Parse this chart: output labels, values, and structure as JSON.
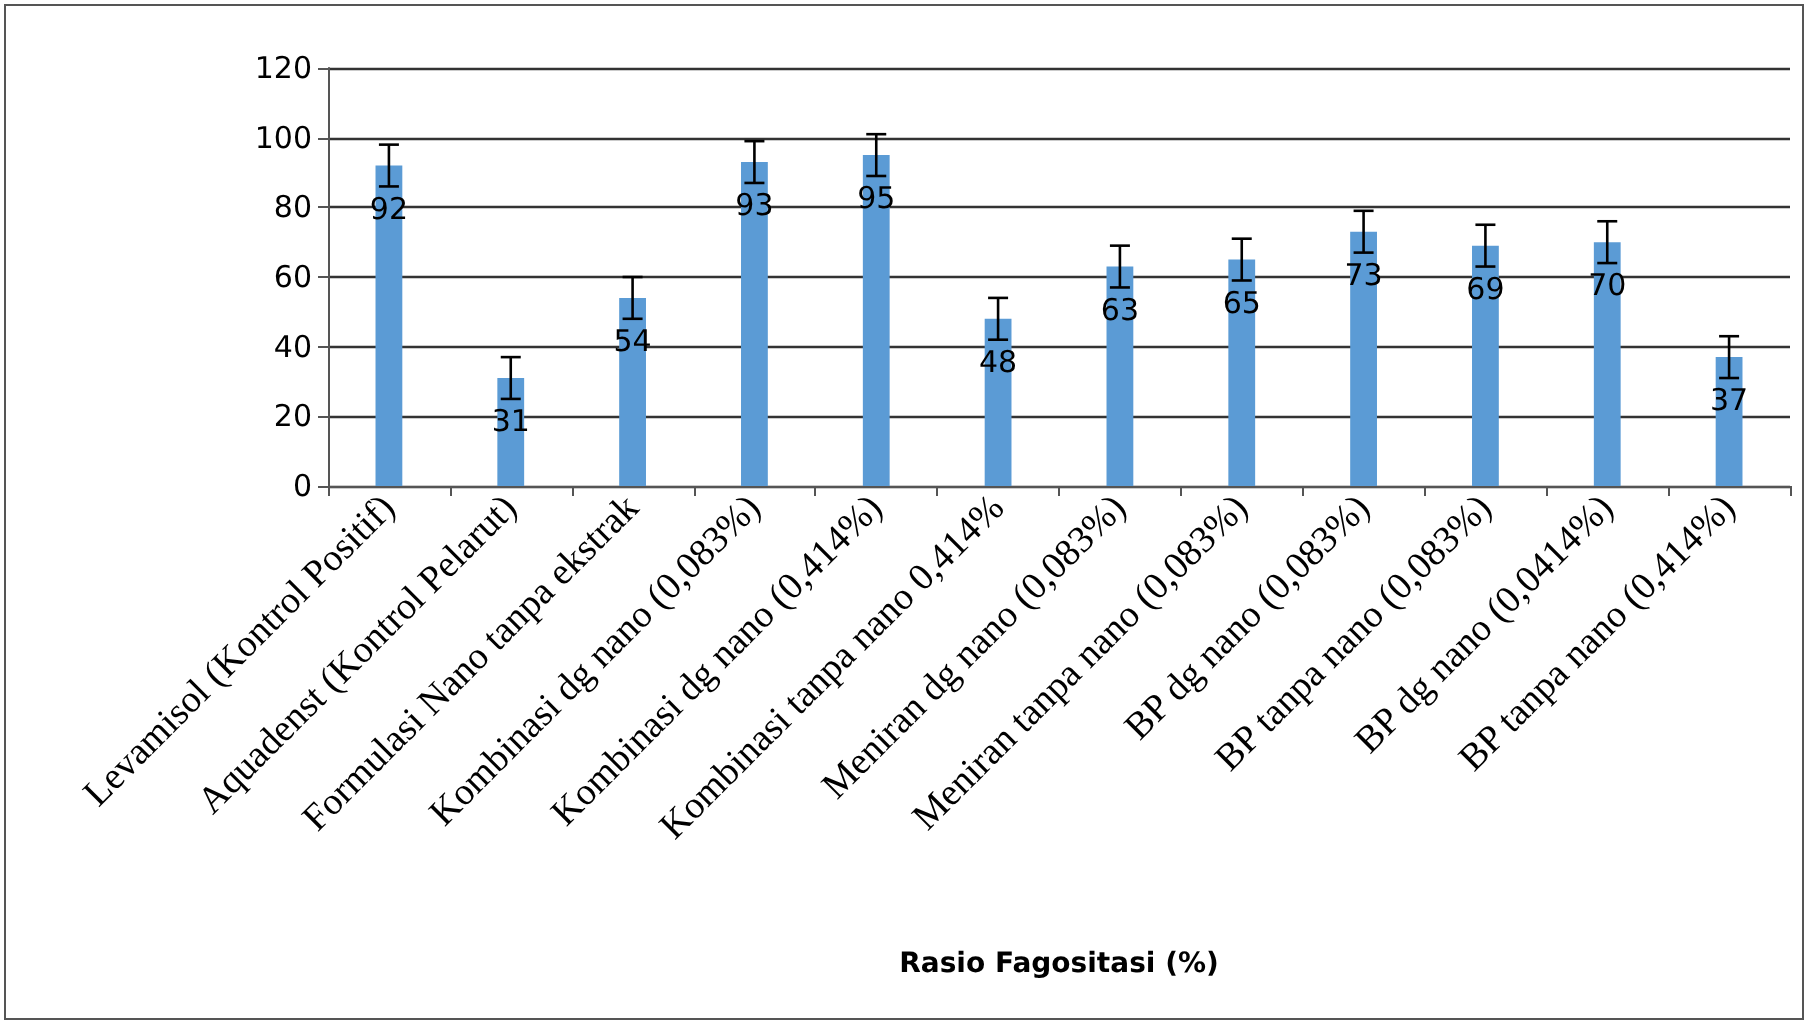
{
  "chart_data": {
    "type": "bar",
    "xlabel": "Rasio Fagositasi (%)",
    "categories": [
      "Levamisol (Kontrol Positif)",
      "Aquadenst (Kontrol Pelarut)",
      "Formulasi Nano tanpa ekstrak",
      "Kombinasi dg nano (0,083%)",
      "Kombinasi dg nano (0,414%)",
      "Kombinasi tanpa nano 0,414%",
      "Meniran dg nano (0,083%)",
      "Meniran tanpa nano (0,083%)",
      "BP dg nano (0,083%)",
      "BP tanpa nano (0,083%)",
      "BP dg nano (0,0414%)",
      "BP tanpa nano (0,414%)"
    ],
    "values": [
      92,
      31,
      54,
      93,
      95,
      48,
      63,
      65,
      73,
      69,
      70,
      37
    ],
    "errors": [
      6,
      6,
      6,
      6,
      6,
      6,
      6,
      6,
      6,
      6,
      6,
      6
    ],
    "color": "#5b9bd5",
    "ylim": [
      0,
      120
    ],
    "yticks": [
      0,
      20,
      40,
      60,
      80,
      100,
      120
    ],
    "grid": "y",
    "data_labels": true
  }
}
